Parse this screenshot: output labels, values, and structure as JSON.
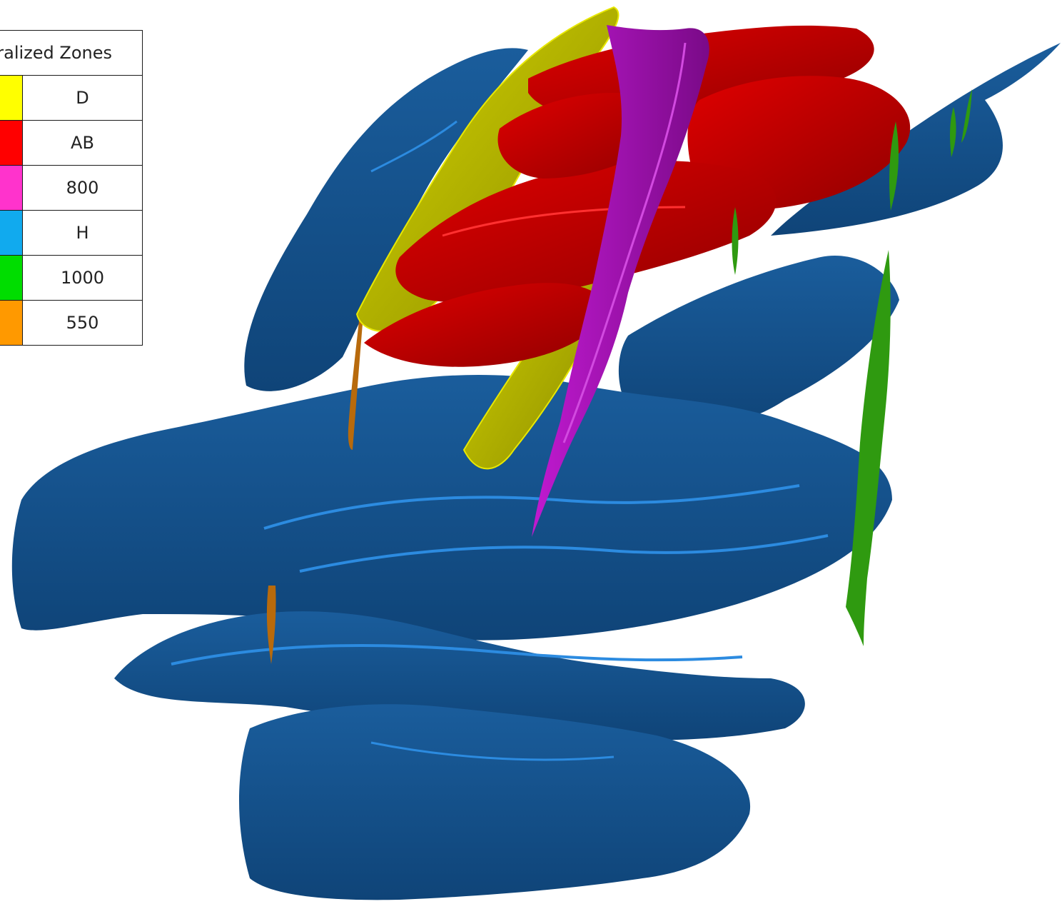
{
  "legend": {
    "title": "Mineralized Zones",
    "items": [
      {
        "label": "D",
        "color": "#ffff00"
      },
      {
        "label": "AB",
        "color": "#ff0000"
      },
      {
        "label": "800",
        "color": "#ff33cc"
      },
      {
        "label": "H",
        "color": "#11aaee"
      },
      {
        "label": "1000",
        "color": "#00dd00"
      },
      {
        "label": "550",
        "color": "#ff9900"
      }
    ]
  },
  "render_colors": {
    "blue_zone": "#124e87",
    "blue_edge": "#2c8be0",
    "yellow_zone": "#a8a800",
    "red_zone": "#b50000",
    "magenta_zone": "#9e0ea8",
    "green_zone": "#2f9a10",
    "orange_zone": "#b86a0c"
  }
}
